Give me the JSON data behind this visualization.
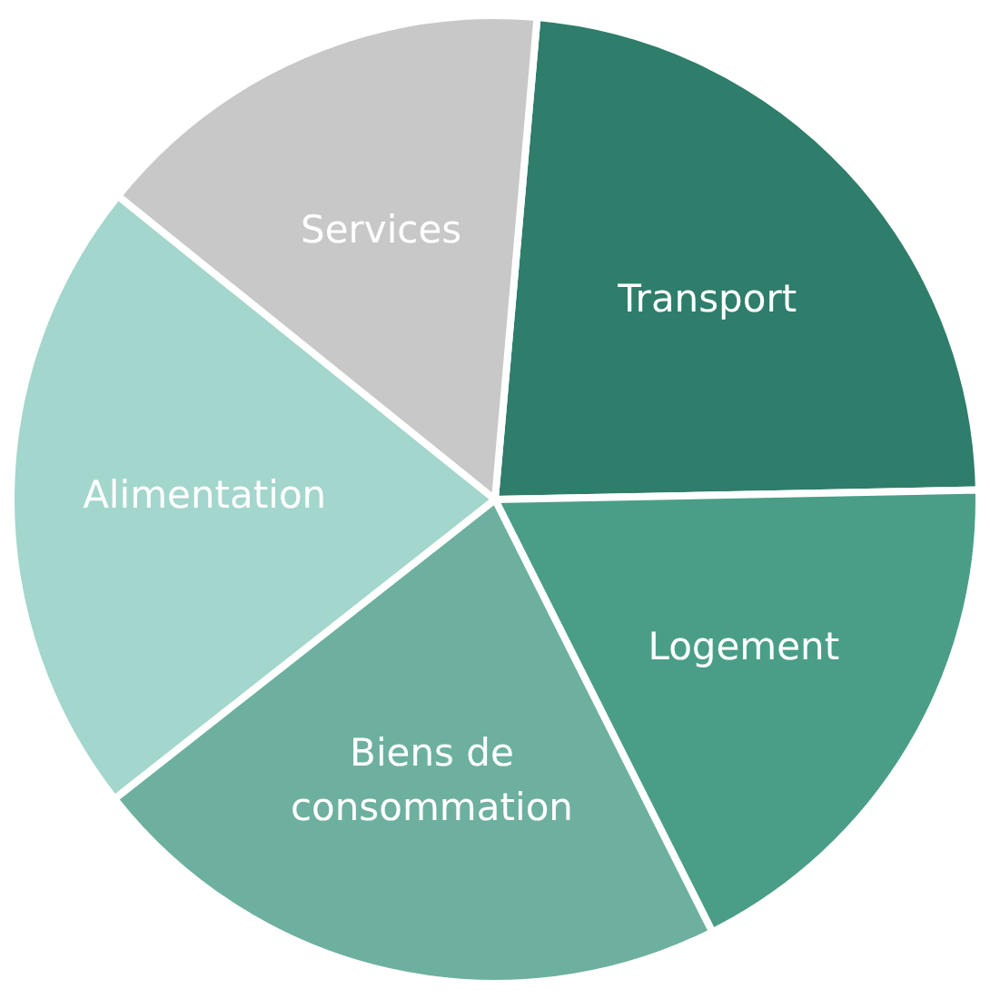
{
  "chart_data": {
    "type": "pie",
    "categories": [
      "Transport",
      "Logement",
      "Biens de consommation",
      "Alimentation",
      "Services"
    ],
    "values": [
      23.3,
      17.9,
      21.8,
      21.4,
      15.6
    ],
    "colors": [
      "#2f7d6b",
      "#4a9e88",
      "#6db09f",
      "#a3d6cc",
      "#c8c8c8"
    ],
    "legend": false
  }
}
